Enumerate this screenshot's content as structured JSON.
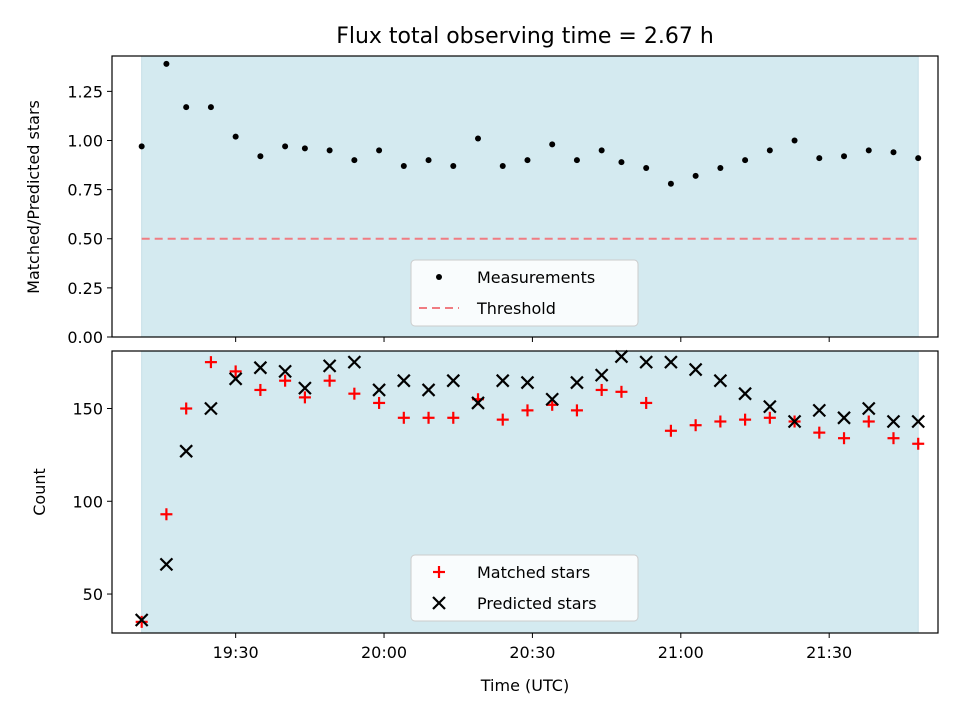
{
  "chart_data": [
    {
      "type": "scatter",
      "title": "Flux total observing time = 2.67 h",
      "ylabel": "Matched/Predicted stars",
      "xlabel": "",
      "ylim": [
        0,
        1.43
      ],
      "yticks": [
        "0.00",
        "0.25",
        "0.50",
        "0.75",
        "1.00",
        "1.25"
      ],
      "ytick_values": [
        0,
        0.25,
        0.5,
        0.75,
        1.0,
        1.25
      ],
      "shaded_region_color": "#d4eaf0",
      "x_times": [
        "19:11",
        "19:16",
        "19:20",
        "19:25",
        "19:30",
        "19:35",
        "19:40",
        "19:44",
        "19:49",
        "19:54",
        "19:59",
        "20:04",
        "20:09",
        "20:14",
        "20:19",
        "20:24",
        "20:29",
        "20:34",
        "20:39",
        "20:44",
        "20:48",
        "20:53",
        "20:58",
        "21:03",
        "21:08",
        "21:13",
        "21:18",
        "21:23",
        "21:28",
        "21:33",
        "21:38",
        "21:43",
        "21:48"
      ],
      "series": [
        {
          "name": "Measurements",
          "color": "#000000",
          "marker": "dot",
          "values": [
            0.97,
            1.39,
            1.17,
            1.17,
            1.02,
            0.92,
            0.97,
            0.96,
            0.95,
            0.9,
            0.95,
            0.87,
            0.9,
            0.87,
            1.01,
            0.87,
            0.9,
            0.98,
            0.9,
            0.95,
            0.89,
            0.86,
            0.78,
            0.82,
            0.86,
            0.9,
            0.95,
            1.0,
            0.91,
            0.92,
            0.95,
            0.94,
            0.91
          ]
        },
        {
          "name": "Threshold",
          "color": "#f07c82",
          "marker": "dashed-line",
          "values": [
            0.5
          ]
        }
      ],
      "legend": "lower-center"
    },
    {
      "type": "scatter",
      "title": "",
      "ylabel": "Count",
      "xlabel": "Time (UTC)",
      "ylim": [
        29,
        181
      ],
      "yticks": [
        "50",
        "100",
        "150"
      ],
      "ytick_values": [
        50,
        100,
        150
      ],
      "xticks": [
        "19:30",
        "20:00",
        "20:30",
        "21:00",
        "21:30"
      ],
      "xtick_values": [
        "19:30",
        "20:00",
        "20:30",
        "21:00",
        "21:30"
      ],
      "shaded_region_color": "#d4eaf0",
      "x_times": [
        "19:11",
        "19:16",
        "19:20",
        "19:25",
        "19:30",
        "19:35",
        "19:40",
        "19:44",
        "19:49",
        "19:54",
        "19:59",
        "20:04",
        "20:09",
        "20:14",
        "20:19",
        "20:24",
        "20:29",
        "20:34",
        "20:39",
        "20:44",
        "20:48",
        "20:53",
        "20:58",
        "21:03",
        "21:08",
        "21:13",
        "21:18",
        "21:23",
        "21:28",
        "21:33",
        "21:38",
        "21:43",
        "21:48"
      ],
      "series": [
        {
          "name": "Matched stars",
          "color": "#ff0000",
          "marker": "plus",
          "values": [
            35,
            93,
            150,
            175,
            170,
            160,
            165,
            156,
            165,
            158,
            153,
            145,
            145,
            145,
            155,
            144,
            149,
            152,
            149,
            160,
            159,
            153,
            138,
            141,
            143,
            144,
            145,
            143,
            137,
            134,
            143,
            134,
            131
          ]
        },
        {
          "name": "Predicted stars",
          "color": "#000000",
          "marker": "x",
          "values": [
            36,
            66,
            127,
            150,
            166,
            172,
            170,
            161,
            173,
            175,
            160,
            165,
            160,
            165,
            153,
            165,
            164,
            155,
            164,
            168,
            178,
            175,
            175,
            171,
            165,
            158,
            151,
            143,
            149,
            145,
            150,
            143,
            143
          ]
        }
      ],
      "legend": "lower-center"
    }
  ]
}
